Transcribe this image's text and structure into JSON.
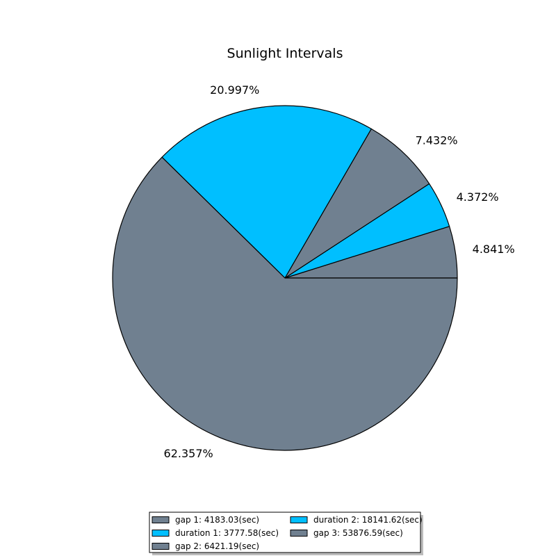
{
  "chart_data": {
    "type": "pie",
    "title": "Sunlight Intervals",
    "slices": [
      {
        "label": "gap 1: 4183.03(sec)",
        "value": 4183.03,
        "percent_label": "4.841%",
        "color": "#708090"
      },
      {
        "label": "duration 1: 3777.58(sec)",
        "value": 3777.58,
        "percent_label": "4.372%",
        "color": "#00bfff"
      },
      {
        "label": "gap 2: 6421.19(sec)",
        "value": 6421.19,
        "percent_label": "7.432%",
        "color": "#708090"
      },
      {
        "label": "duration 2: 18141.62(sec)",
        "value": 18141.62,
        "percent_label": "20.997%",
        "color": "#00bfff"
      },
      {
        "label": "gap 3: 53876.59(sec)",
        "value": 53876.59,
        "percent_label": "62.357%",
        "color": "#708090"
      }
    ],
    "start_angle_deg": 0,
    "direction": "counterclockwise",
    "legend_position": "bottom-center",
    "legend_columns": 2
  }
}
